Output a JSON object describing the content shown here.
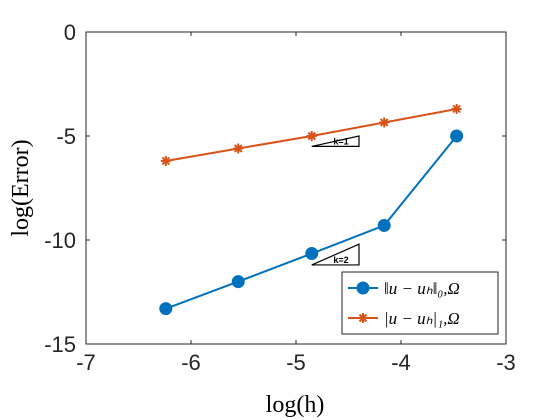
{
  "chart_data": {
    "type": "line",
    "xlabel": "log(h)",
    "ylabel": "log(Error)",
    "xlim": [
      -7,
      -3
    ],
    "ylim": [
      -15,
      0
    ],
    "xticks": [
      -7,
      -6,
      -5,
      -4,
      -3
    ],
    "yticks": [
      0,
      -5,
      -10,
      -15
    ],
    "xtick_labels": [
      "-7",
      "-6",
      "-5",
      "-4",
      "-3"
    ],
    "ytick_labels": [
      "0",
      "-5",
      "-10",
      "-15"
    ],
    "grid": false,
    "legend_position": "bottom-right",
    "series": [
      {
        "name": "||u − u_h||_{0,Ω}",
        "legend_label": "‖u − uₕ‖₀,Ω",
        "color": "#0072BD",
        "marker": "circle",
        "x": [
          -6.24,
          -5.55,
          -4.85,
          -4.16,
          -3.47
        ],
        "y": [
          -13.3,
          -12.0,
          -10.65,
          -9.3,
          -5.0
        ]
      },
      {
        "name": "|u − u_h|_{1,Ω}",
        "legend_label": "|u − uₕ|₁,Ω",
        "color": "#D95319",
        "marker": "asterisk",
        "x": [
          -6.24,
          -5.55,
          -4.85,
          -4.16,
          -3.47
        ],
        "y": [
          -6.2,
          -5.6,
          -5.0,
          -4.35,
          -3.7
        ]
      }
    ],
    "annotations": [
      {
        "text": "k=1",
        "shape": "slope-triangle",
        "x": [
          -4.85,
          -4.4
        ],
        "y": [
          -5.5,
          -5.0
        ]
      },
      {
        "text": "k=2",
        "shape": "slope-triangle",
        "x": [
          -4.85,
          -4.4
        ],
        "y": [
          -11.2,
          -10.2
        ]
      }
    ]
  }
}
